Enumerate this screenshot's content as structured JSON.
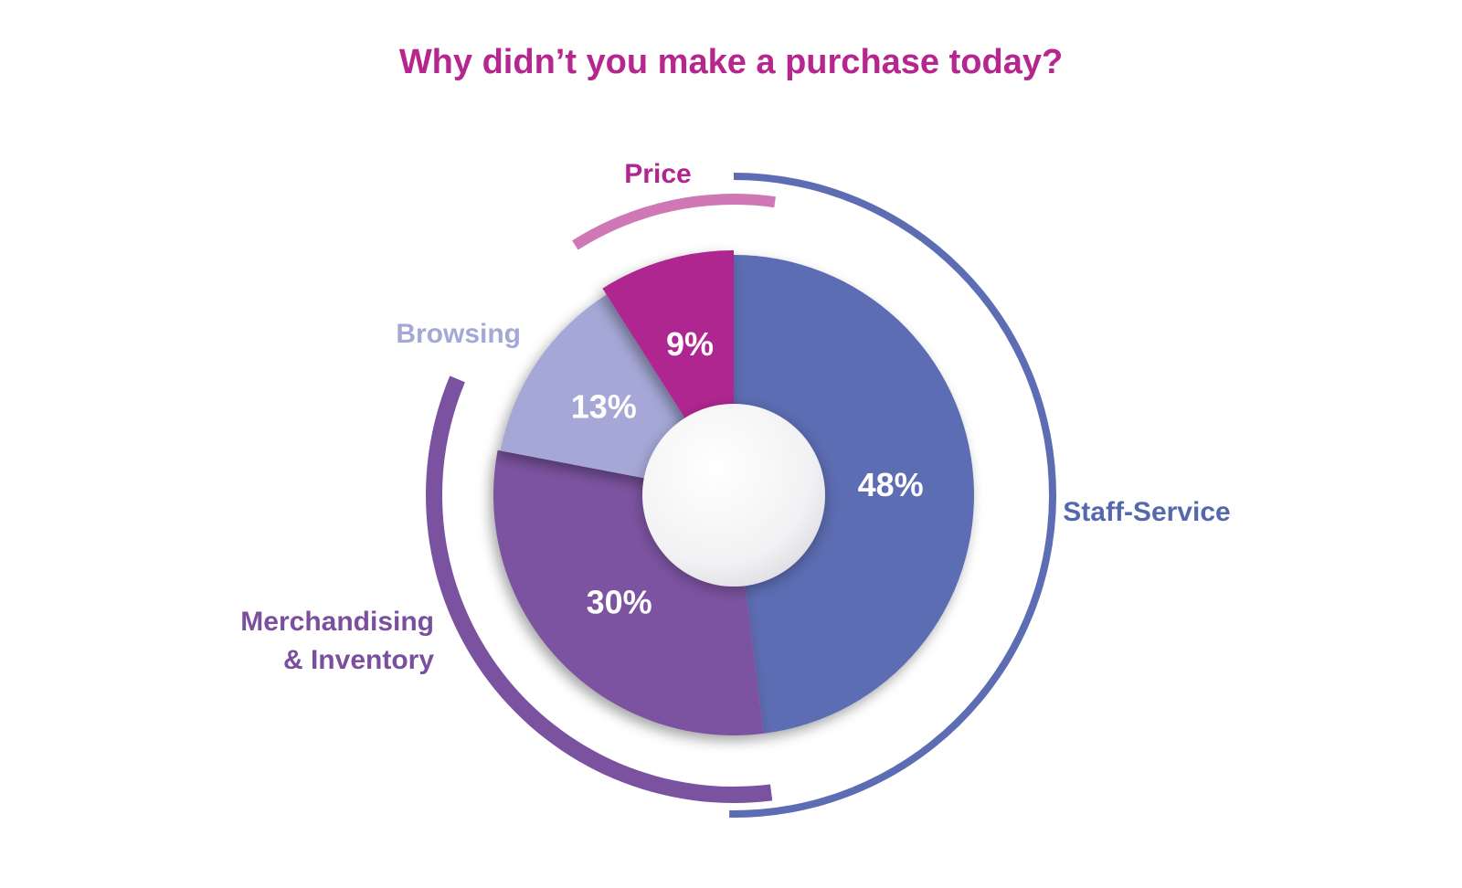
{
  "chart_data": {
    "type": "pie",
    "title": "Why didn’t you make a purchase today?",
    "title_color": "#b5268e",
    "categories": [
      "Staff-Service",
      "Merchandising & Inventory",
      "Browsing",
      "Price"
    ],
    "series": [
      {
        "values": [
          48,
          30,
          13,
          9
        ],
        "value_labels": [
          "48%",
          "30%",
          "13%",
          "9%"
        ]
      }
    ],
    "colors": [
      "#5d6db3",
      "#7b52a0",
      "#a5a8d6",
      "#b02590"
    ],
    "outer_ring_colors": [
      "#5d6db3",
      "#7b52a0",
      null,
      "#cf78b5"
    ],
    "label_colors": [
      "#5568ae",
      "#7a4f9e",
      "#a5a8d6",
      "#b02590"
    ],
    "category_label_lines": [
      [
        "Staff-Service"
      ],
      [
        "Merchandising",
        "& Inventory"
      ],
      [
        "Browsing"
      ],
      [
        "Price"
      ]
    ],
    "start_angle_deg": 0,
    "direction": "clockwise",
    "center_hole": true,
    "legend": "none"
  }
}
